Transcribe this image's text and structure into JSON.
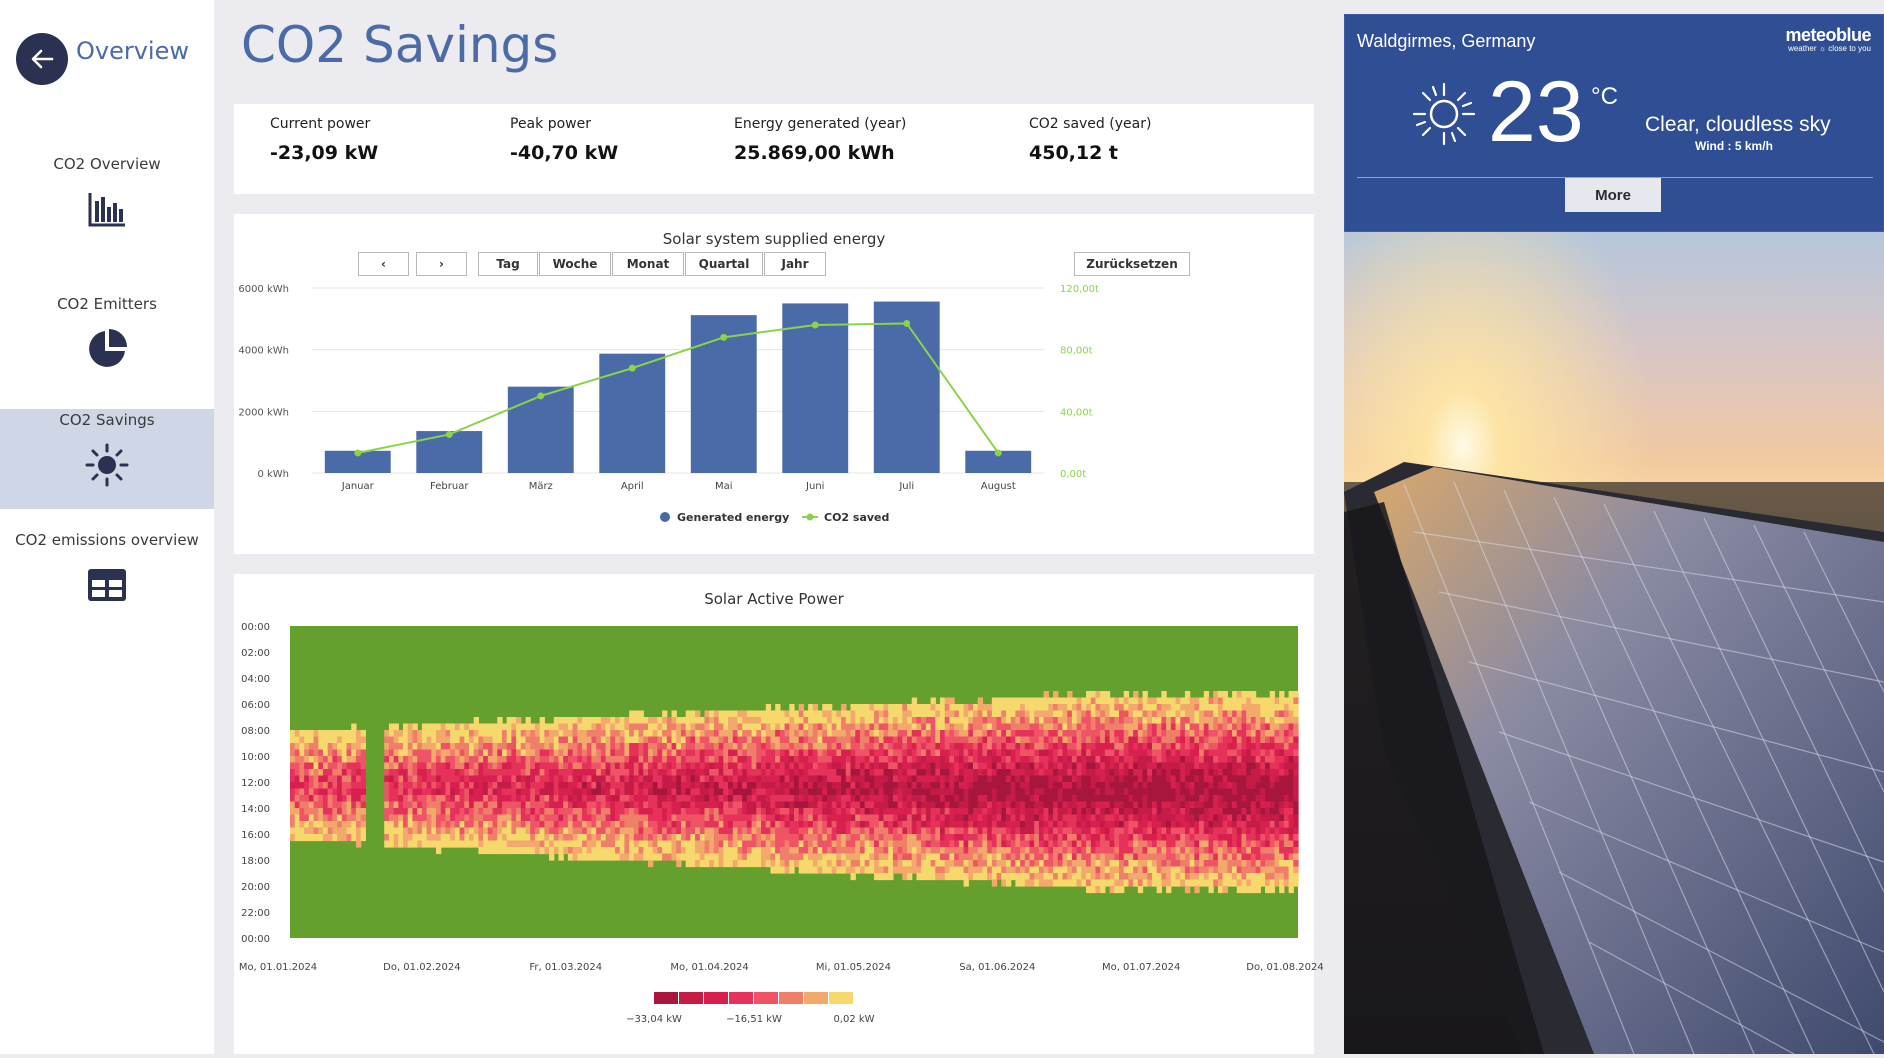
{
  "sidebar": {
    "back_label": "Overview",
    "items": [
      {
        "label": "CO2 Overview",
        "icon": "bar-chart-icon"
      },
      {
        "label": "CO2 Emitters",
        "icon": "pie-chart-icon"
      },
      {
        "label": "CO2 Savings",
        "icon": "sun-icon",
        "active": true
      },
      {
        "label": "CO2 emissions overview",
        "icon": "table-icon"
      }
    ]
  },
  "page": {
    "title": "CO2 Savings"
  },
  "kpis": [
    {
      "label": "Current power",
      "value": "-23,09 kW"
    },
    {
      "label": "Peak power",
      "value": "-40,70 kW"
    },
    {
      "label": "Energy generated (year)",
      "value": "25.869,00 kWh"
    },
    {
      "label": "CO2 saved (year)",
      "value": "450,12 t"
    }
  ],
  "bar_chart": {
    "title": "Solar system supplied energy",
    "controls": {
      "prev": "‹",
      "next": "›",
      "day": "Tag",
      "week": "Woche",
      "month": "Monat",
      "quarter": "Quartal",
      "year": "Jahr",
      "reset": "Zurücksetzen"
    }
  },
  "heatmap": {
    "title": "Solar Active Power",
    "y_ticks": [
      "00:00",
      "02:00",
      "04:00",
      "06:00",
      "08:00",
      "10:00",
      "12:00",
      "14:00",
      "16:00",
      "18:00",
      "20:00",
      "22:00",
      "00:00"
    ],
    "x_ticks": [
      "Mo, 01.01.2024",
      "Do, 01.02.2024",
      "Fr, 01.03.2024",
      "Mo, 01.04.2024",
      "Mi, 01.05.2024",
      "Sa, 01.06.2024",
      "Mo, 01.07.2024",
      "Do, 01.08.2024"
    ],
    "scale_labels": [
      "−33,04 kW",
      "−16,51 kW",
      "0,02 kW"
    ],
    "scale_colors": [
      "#a8163e",
      "#c41c47",
      "#d8204f",
      "#e6325a",
      "#ef5466",
      "#f07f6a",
      "#f3a86c",
      "#f6d86c"
    ],
    "zero_color": "#65a02f"
  },
  "weather": {
    "city": "Waldgirmes, Germany",
    "brand": "meteoblue",
    "brand_tagline": "weather ☼ close to you",
    "temperature": "23",
    "unit": "°C",
    "condition": "Clear, cloudless sky",
    "wind": "Wind : 5 km/h",
    "more_label": "More"
  },
  "chart_data": {
    "type": "bar",
    "title": "Solar system supplied energy",
    "categories": [
      "Januar",
      "Februar",
      "März",
      "April",
      "Mai",
      "Juni",
      "Juli",
      "August"
    ],
    "series": [
      {
        "name": "Generated energy",
        "type": "bar",
        "axis": "left",
        "color": "#4a6aa8",
        "values": [
          720,
          1360,
          2800,
          3870,
          5120,
          5500,
          5560,
          720
        ]
      },
      {
        "name": "CO2 saved",
        "type": "line",
        "axis": "right",
        "color": "#8bd44a",
        "values": [
          13,
          25,
          50,
          68,
          88,
          96,
          97,
          13
        ]
      }
    ],
    "y_left": {
      "ticks": [
        "0 kWh",
        "2000 kWh",
        "4000 kWh",
        "6000 kWh"
      ],
      "range": [
        0,
        6000
      ]
    },
    "y_right": {
      "ticks": [
        "0,00t",
        "40,00t",
        "80,00t",
        "120,00t"
      ],
      "range": [
        0,
        120
      ]
    },
    "legend_position": "bottom",
    "grid": true
  }
}
